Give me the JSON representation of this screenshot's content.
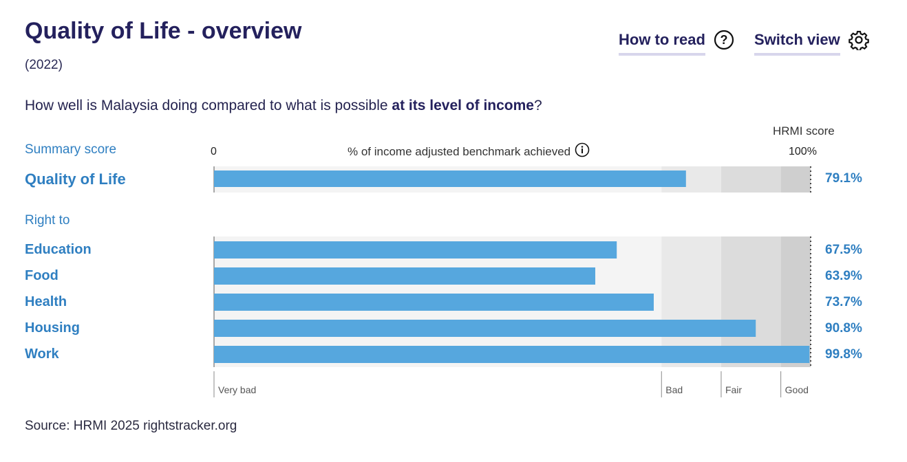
{
  "header": {
    "title": "Quality of Life - overview",
    "year": "(2022)",
    "question_prefix": "How well is Malaysia doing compared to what is possible ",
    "question_bold": "at its level of income",
    "question_suffix": "?"
  },
  "nav": {
    "how_to_read": "How to read",
    "switch_view": "Switch view"
  },
  "labels": {
    "summary_score": "Summary score",
    "right_to": "Right to",
    "axis_zero": "0",
    "axis_title": "% of income adjusted benchmark achieved",
    "axis_hundred": "100%",
    "hrmi_score": "HRMI score"
  },
  "chart_data": {
    "type": "bar",
    "orientation": "horizontal",
    "xlim": [
      0,
      100
    ],
    "bands": [
      {
        "label": "Very bad",
        "from": 0,
        "to": 75
      },
      {
        "label": "Bad",
        "from": 75,
        "to": 85
      },
      {
        "label": "Fair",
        "from": 85,
        "to": 95
      },
      {
        "label": "Good",
        "from": 95,
        "to": 100
      }
    ],
    "summary": {
      "category": "Quality of Life",
      "value": 79.1,
      "label": "79.1%"
    },
    "categories": [
      "Education",
      "Food",
      "Health",
      "Housing",
      "Work"
    ],
    "values": [
      67.5,
      63.9,
      73.7,
      90.8,
      99.8
    ],
    "value_labels": [
      "67.5%",
      "63.9%",
      "73.7%",
      "90.8%",
      "99.8%"
    ],
    "bar_color": "#56a7de"
  },
  "source": "Source: HRMI 2025 rightstracker.org"
}
